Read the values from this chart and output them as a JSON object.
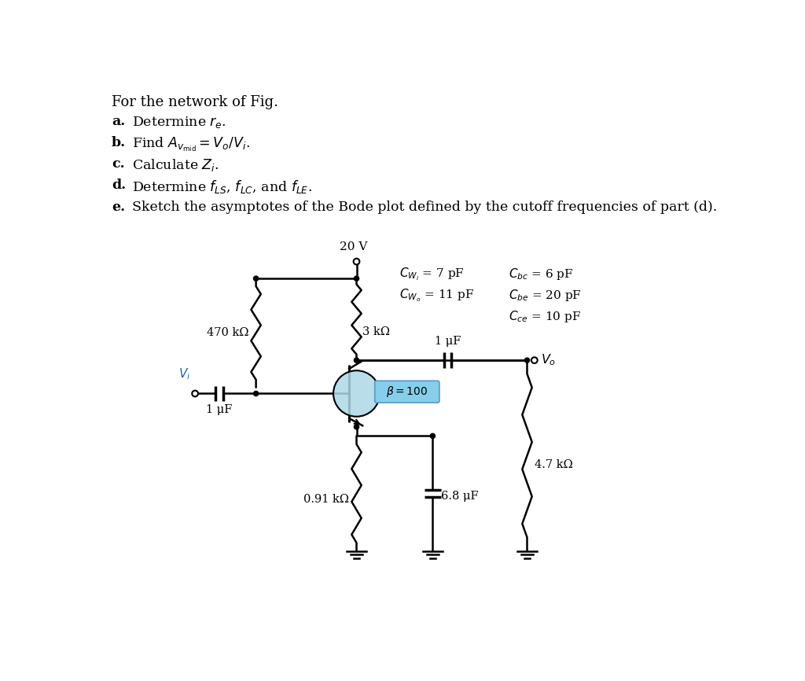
{
  "bg_color": "#ffffff",
  "title_text": "For the network of Fig.",
  "items_labels": [
    "a.",
    "b.",
    "c.",
    "d.",
    "e."
  ],
  "items_texts": [
    "Determine $r_e$.",
    "Find $A_{v_\\mathrm{mid}} = V_o/V_i$.",
    "Calculate $Z_i$.",
    "Determine $f_{LS}$, $f_{LC}$, and $f_{LE}$.",
    "Sketch the asymptotes of the Bode plot defined by the cutoff frequencies of part (d)."
  ],
  "vcc": "20 V",
  "r1_label": "470 kΩ",
  "rc_label": "3 kΩ",
  "re_label": "0.91 kΩ",
  "rl_label": "4.7 kΩ",
  "c1_label": "1 μF",
  "c2_label": "1 μF",
  "ce_label": "6.8 μF",
  "beta_label": "β = 100",
  "vi_label": "$V_i$",
  "vo_label": "$V_o$",
  "cwi_label": "$C_{W_i}$ = 7 pF",
  "cwo_label": "$C_{W_o}$ = 11 pF",
  "cbc_label": "$C_{bc}$ = 6 pF",
  "cbe_label": "$C_{be}$ = 20 pF",
  "cce_label": "$C_{ce}$ = 10 pF",
  "lw": 1.8,
  "bjt_color": "#add8e6",
  "beta_box_color": "#87CEEB"
}
